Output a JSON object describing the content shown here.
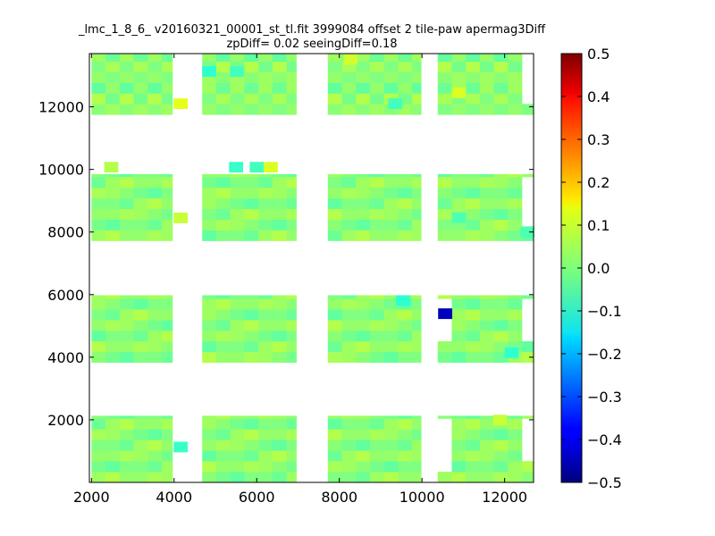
{
  "chart_data": {
    "type": "heatmap",
    "title_line1": "_lmc_1_8_6_ v20160321_00001_st_tl.fit 3999084 offset 2 tile-paw apermag3Diff",
    "title_line2": "zpDiff= 0.02 seeingDiff=0.18",
    "xlabel": "",
    "ylabel": "",
    "xlim": [
      1950,
      12700
    ],
    "ylim": [
      0,
      13700
    ],
    "x_ticks": [
      2000,
      4000,
      6000,
      8000,
      10000,
      12000
    ],
    "y_ticks": [
      2000,
      4000,
      6000,
      8000,
      10000,
      12000
    ],
    "cell_size": 340,
    "column_groups_x": [
      [
        2000,
        3960
      ],
      [
        4680,
        6960
      ],
      [
        7720,
        9980
      ],
      [
        10380,
        12700
      ]
    ],
    "row_bands_y": [
      [
        0,
        2130
      ],
      [
        3830,
        5980
      ],
      [
        7720,
        9850
      ],
      [
        11750,
        13700
      ]
    ],
    "default_value": 0.0,
    "value_pattern": [
      0.03,
      -0.01,
      0.02,
      0.0,
      0.04,
      -0.02,
      0.01,
      0.05,
      -0.03,
      0.02,
      0.0,
      0.03
    ],
    "special_cells": [
      {
        "x": 10560,
        "y": 5390,
        "value": -0.44
      },
      {
        "x": 4160,
        "y": 1130,
        "value": -0.07
      },
      {
        "x": 4160,
        "y": 12100,
        "value": 0.1
      },
      {
        "x": 4160,
        "y": 8450,
        "value": 0.07
      },
      {
        "x": 2480,
        "y": 10070,
        "value": 0.05
      },
      {
        "x": 5500,
        "y": 10070,
        "value": -0.07
      },
      {
        "x": 6000,
        "y": 10070,
        "value": -0.06
      },
      {
        "x": 6340,
        "y": 10070,
        "value": 0.09
      },
      {
        "x": 9540,
        "y": 5810,
        "value": -0.08
      },
      {
        "x": 12170,
        "y": 4140,
        "value": -0.08
      },
      {
        "x": 9350,
        "y": 12100,
        "value": -0.06
      },
      {
        "x": 4850,
        "y": 13130,
        "value": -0.08
      },
      {
        "x": 5520,
        "y": 13130,
        "value": -0.06
      },
      {
        "x": 10890,
        "y": 8460,
        "value": -0.05
      },
      {
        "x": 10890,
        "y": 12450,
        "value": 0.09
      },
      {
        "x": 11890,
        "y": 1990,
        "value": 0.07
      },
      {
        "x": 8270,
        "y": 13520,
        "value": 0.08
      },
      {
        "x": 12550,
        "y": 8010,
        "value": -0.05
      }
    ],
    "missing_cells": [
      {
        "x": 10400,
        "y": 5560
      },
      {
        "x": 10400,
        "y": 5220
      },
      {
        "x": 10400,
        "y": 4880
      },
      {
        "x": 12550,
        "y": 9720
      },
      {
        "x": 12550,
        "y": 9380
      },
      {
        "x": 12550,
        "y": 9040
      },
      {
        "x": 12550,
        "y": 8700
      },
      {
        "x": 12550,
        "y": 8360
      },
      {
        "x": 12550,
        "y": 5560
      },
      {
        "x": 12550,
        "y": 5220
      },
      {
        "x": 12550,
        "y": 4880
      },
      {
        "x": 12550,
        "y": 4540
      },
      {
        "x": 12550,
        "y": 1800
      },
      {
        "x": 12550,
        "y": 1460
      },
      {
        "x": 12550,
        "y": 1120
      },
      {
        "x": 12550,
        "y": 780
      },
      {
        "x": 12550,
        "y": 13520
      },
      {
        "x": 12550,
        "y": 13180
      },
      {
        "x": 12550,
        "y": 12840
      },
      {
        "x": 12550,
        "y": 12500
      },
      {
        "x": 12550,
        "y": 12160
      },
      {
        "x": 10400,
        "y": 2000
      },
      {
        "x": 10400,
        "y": 1660
      },
      {
        "x": 10400,
        "y": 1320
      },
      {
        "x": 10400,
        "y": 980
      },
      {
        "x": 10400,
        "y": 640
      },
      {
        "x": 10400,
        "y": 4540
      }
    ],
    "colorbar": {
      "vmin": -0.5,
      "vmax": 0.5,
      "ticks": [
        "0.5",
        "0.4",
        "0.3",
        "0.2",
        "0.1",
        "0.0",
        "−0.1",
        "−0.2",
        "−0.3",
        "−0.4",
        "−0.5"
      ],
      "colormap": "jet"
    },
    "grid": false
  }
}
